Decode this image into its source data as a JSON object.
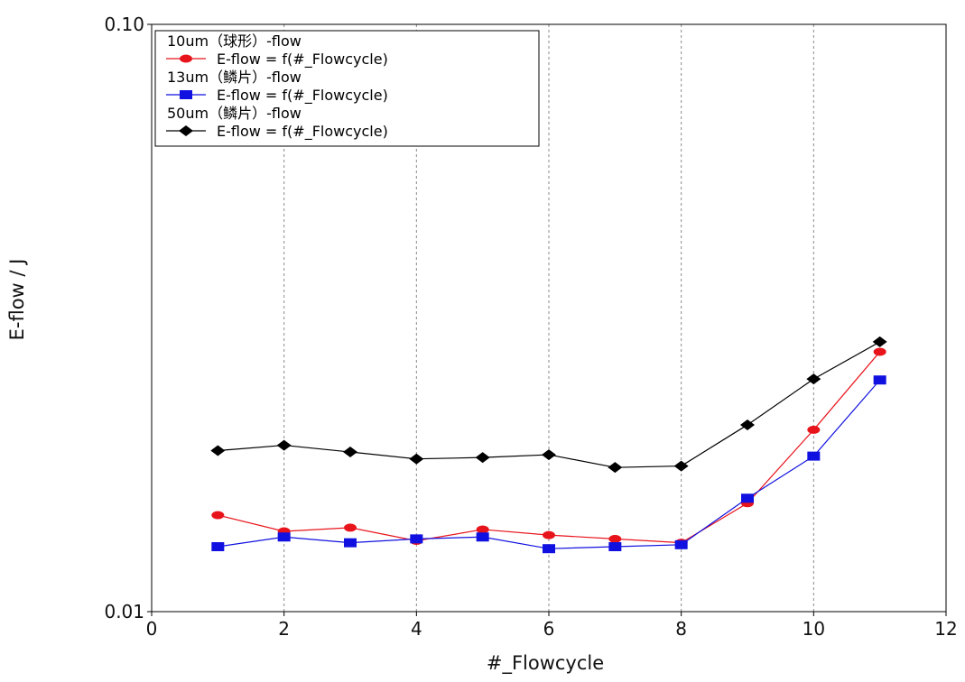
{
  "chart_data": {
    "type": "line",
    "title": "",
    "xlabel": "#_Flowcycle",
    "ylabel": "E-flow / J",
    "xlim": [
      0,
      12
    ],
    "ylim": [
      0.01,
      0.1
    ],
    "yscale": "log",
    "x_ticks": [
      0,
      2,
      4,
      6,
      8,
      10,
      12
    ],
    "y_ticks": [
      0.01,
      0.1
    ],
    "y_tick_labels": [
      "0.01",
      "0.10"
    ],
    "grid": "vertical dashed",
    "legend_position": "top-left",
    "x": [
      1,
      2,
      3,
      4,
      5,
      6,
      7,
      8,
      9,
      10,
      11
    ],
    "series": [
      {
        "group": "10um（球形）-flow",
        "name": "E-flow = f(#_Flowcycle)",
        "color": "#e8141b",
        "marker": "circle",
        "values": [
          0.0146,
          0.0137,
          0.0139,
          0.0132,
          0.0138,
          0.0135,
          0.0133,
          0.0131,
          0.0153,
          0.0204,
          0.0277
        ]
      },
      {
        "group": "13um（鳞片）-flow",
        "name": "E-flow = f(#_Flowcycle)",
        "color": "#1010e0",
        "marker": "square",
        "values": [
          0.0129,
          0.0134,
          0.0131,
          0.0133,
          0.0134,
          0.0128,
          0.0129,
          0.013,
          0.0156,
          0.0184,
          0.0248
        ]
      },
      {
        "group": "50um（鳞片）-flow",
        "name": "E-flow = f(#_Flowcycle)",
        "color": "#000000",
        "marker": "diamond",
        "values": [
          0.0188,
          0.0192,
          0.0187,
          0.0182,
          0.0183,
          0.0185,
          0.0176,
          0.0177,
          0.0208,
          0.0249,
          0.0288
        ]
      }
    ]
  }
}
